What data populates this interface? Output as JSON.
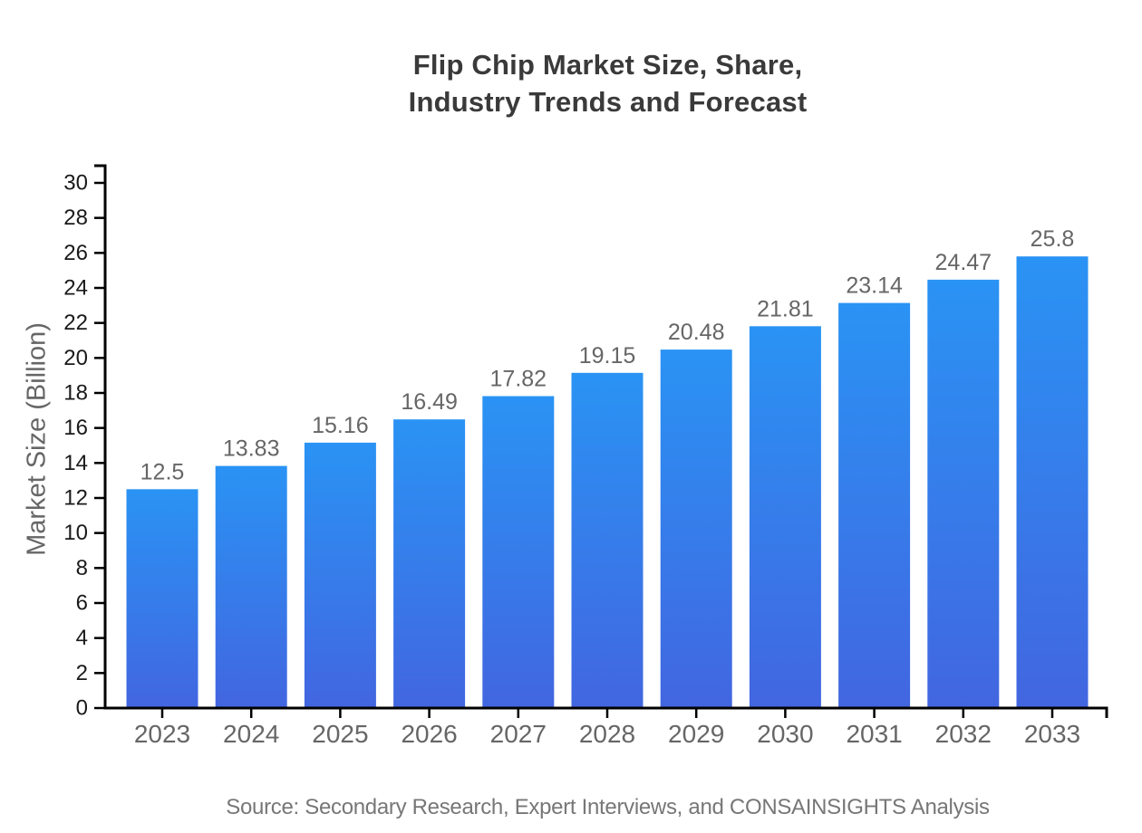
{
  "title": {
    "line1": "Flip Chip Market Size, Share,",
    "line2": "Industry Trends and Forecast"
  },
  "source_note": "Source: Secondary Research, Expert Interviews, and CONSAINSIGHTS Analysis",
  "chart_data": {
    "type": "bar",
    "title": "Flip Chip Market Size, Share, Industry Trends and Forecast",
    "categories": [
      "2023",
      "2024",
      "2025",
      "2026",
      "2027",
      "2028",
      "2029",
      "2030",
      "2031",
      "2032",
      "2033"
    ],
    "values": [
      12.5,
      13.83,
      15.16,
      16.49,
      17.82,
      19.15,
      20.48,
      21.81,
      23.14,
      24.47,
      25.8
    ],
    "value_labels": [
      "12.5",
      "13.83",
      "15.16",
      "16.49",
      "17.82",
      "19.15",
      "20.48",
      "21.81",
      "23.14",
      "24.47",
      "25.8"
    ],
    "xlabel": "",
    "ylabel": "Market Size (Billion)",
    "ylim": [
      0,
      30
    ],
    "ytick_step": 2,
    "yticks": [
      0,
      2,
      4,
      6,
      8,
      10,
      12,
      14,
      16,
      18,
      20,
      22,
      24,
      26,
      28,
      30
    ],
    "grid": false,
    "legend": null,
    "bar_gradient": {
      "top": "#2a93f4",
      "bottom": "#4266e0"
    },
    "axis_color": "#000000",
    "label_colors": {
      "y_ticks": "#1a1a1a",
      "x_ticks": "#666666",
      "values": "#666666",
      "axis_title": "#666666"
    }
  }
}
